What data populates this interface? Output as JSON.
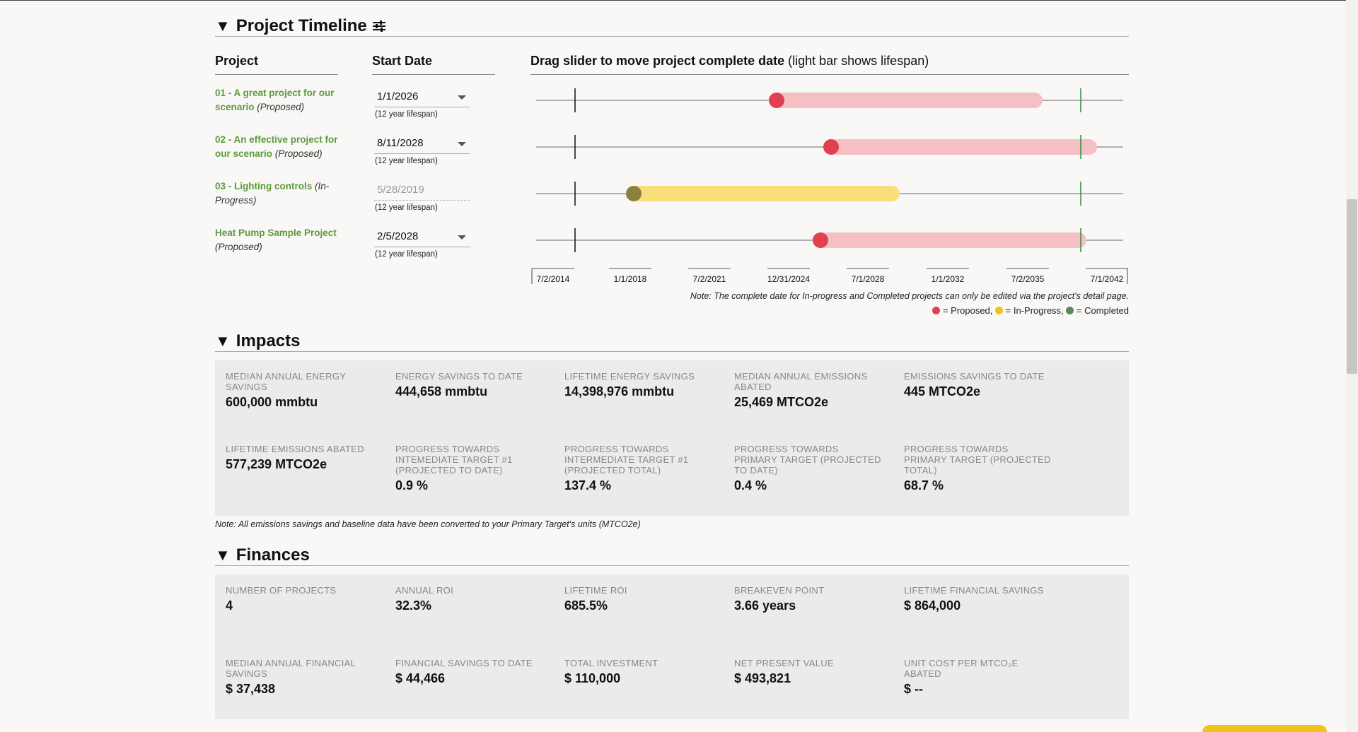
{
  "timeline": {
    "title": "Project Timeline",
    "filter_icon": "sliders-icon",
    "col_project": "Project",
    "col_start": "Start Date",
    "col_drag_bold": "Drag slider to move project complete date",
    "col_drag_light": "(light bar shows lifespan)",
    "projects": [
      {
        "name": "01 - A great project for our scenario",
        "status": "(Proposed)",
        "start": "1/1/2026",
        "lifespan": "(12 year lifespan)",
        "state": "proposed",
        "editable": true
      },
      {
        "name": "02 - An effective project for our scenario",
        "status": "(Proposed)",
        "start": "8/11/2028",
        "lifespan": "(12 year lifespan)",
        "state": "proposed",
        "editable": true
      },
      {
        "name": "03 - Lighting controls",
        "status": "(In-Progress)",
        "start": "5/28/2019",
        "lifespan": "(12 year lifespan)",
        "state": "in-progress",
        "editable": false
      },
      {
        "name": "Heat Pump Sample Project",
        "status": "(Proposed)",
        "start": "2/5/2028",
        "lifespan": "(12 year lifespan)",
        "state": "proposed",
        "editable": true
      }
    ],
    "axis_ticks": [
      "7/2/2014",
      "1/1/2018",
      "7/2/2021",
      "12/31/2024",
      "7/1/2028",
      "1/1/2032",
      "7/2/2035",
      "7/1/2042"
    ],
    "note": "Note: The complete date for In-progress and Completed projects can only be edited via the project's detail page.",
    "legend": {
      "proposed": "= Proposed,",
      "in_progress": "= In-Progress,",
      "completed": "= Completed"
    },
    "colors": {
      "proposed_dot": "#e04050",
      "proposed_bar": "#f5c0c4",
      "in_progress_dot": "#8a8040",
      "in_progress_bar": "#f8df7a",
      "completed_dot": "#5a8a5a",
      "green_marker": "#2e8b3e"
    }
  },
  "impacts": {
    "title": "Impacts",
    "stats": [
      {
        "label": "MEDIAN ANNUAL ENERGY SAVINGS",
        "value": "600,000 mmbtu"
      },
      {
        "label": "ENERGY SAVINGS TO DATE",
        "value": "444,658 mmbtu"
      },
      {
        "label": "LIFETIME ENERGY SAVINGS",
        "value": "14,398,976 mmbtu"
      },
      {
        "label": "MEDIAN ANNUAL EMISSIONS ABATED",
        "value": "25,469 MTCO2e"
      },
      {
        "label": "EMISSIONS SAVINGS TO DATE",
        "value": "445 MTCO2e"
      },
      {
        "label": "LIFETIME EMISSIONS ABATED",
        "value": "577,239 MTCO2e"
      },
      {
        "label": "PROGRESS TOWARDS INTEMEDIATE TARGET #1 (PROJECTED TO DATE)",
        "value": "0.9 %"
      },
      {
        "label": "PROGRESS TOWARDS INTERMEDIATE TARGET #1 (PROJECTED TOTAL)",
        "value": "137.4 %"
      },
      {
        "label": "PROGRESS TOWARDS PRIMARY TARGET (PROJECTED TO DATE)",
        "value": "0.4 %"
      },
      {
        "label": "PROGRESS TOWARDS PRIMARY TARGET (PROJECTED TOTAL)",
        "value": "68.7 %"
      }
    ],
    "note": "Note: All emissions savings and baseline data have been converted to your Primary Target's units (MTCO2e)"
  },
  "finances": {
    "title": "Finances",
    "stats": [
      {
        "label": "NUMBER OF PROJECTS",
        "value": "4"
      },
      {
        "label": "ANNUAL ROI",
        "value": "32.3%"
      },
      {
        "label": "LIFETIME ROI",
        "value": "685.5%"
      },
      {
        "label": "BREAKEVEN POINT",
        "value": "3.66 years"
      },
      {
        "label": "LIFETIME FINANCIAL SAVINGS",
        "value": "$ 864,000"
      },
      {
        "label": "MEDIAN ANNUAL FINANCIAL SAVINGS",
        "value": "$ 37,438"
      },
      {
        "label": "FINANCIAL SAVINGS TO DATE",
        "value": "$ 44,466"
      },
      {
        "label": "TOTAL INVESTMENT",
        "value": "$ 110,000"
      },
      {
        "label": "NET PRESENT VALUE",
        "value": "$ 493,821"
      },
      {
        "label": "UNIT COST PER MTCO₂E ABATED",
        "value": "$ --"
      }
    ]
  }
}
